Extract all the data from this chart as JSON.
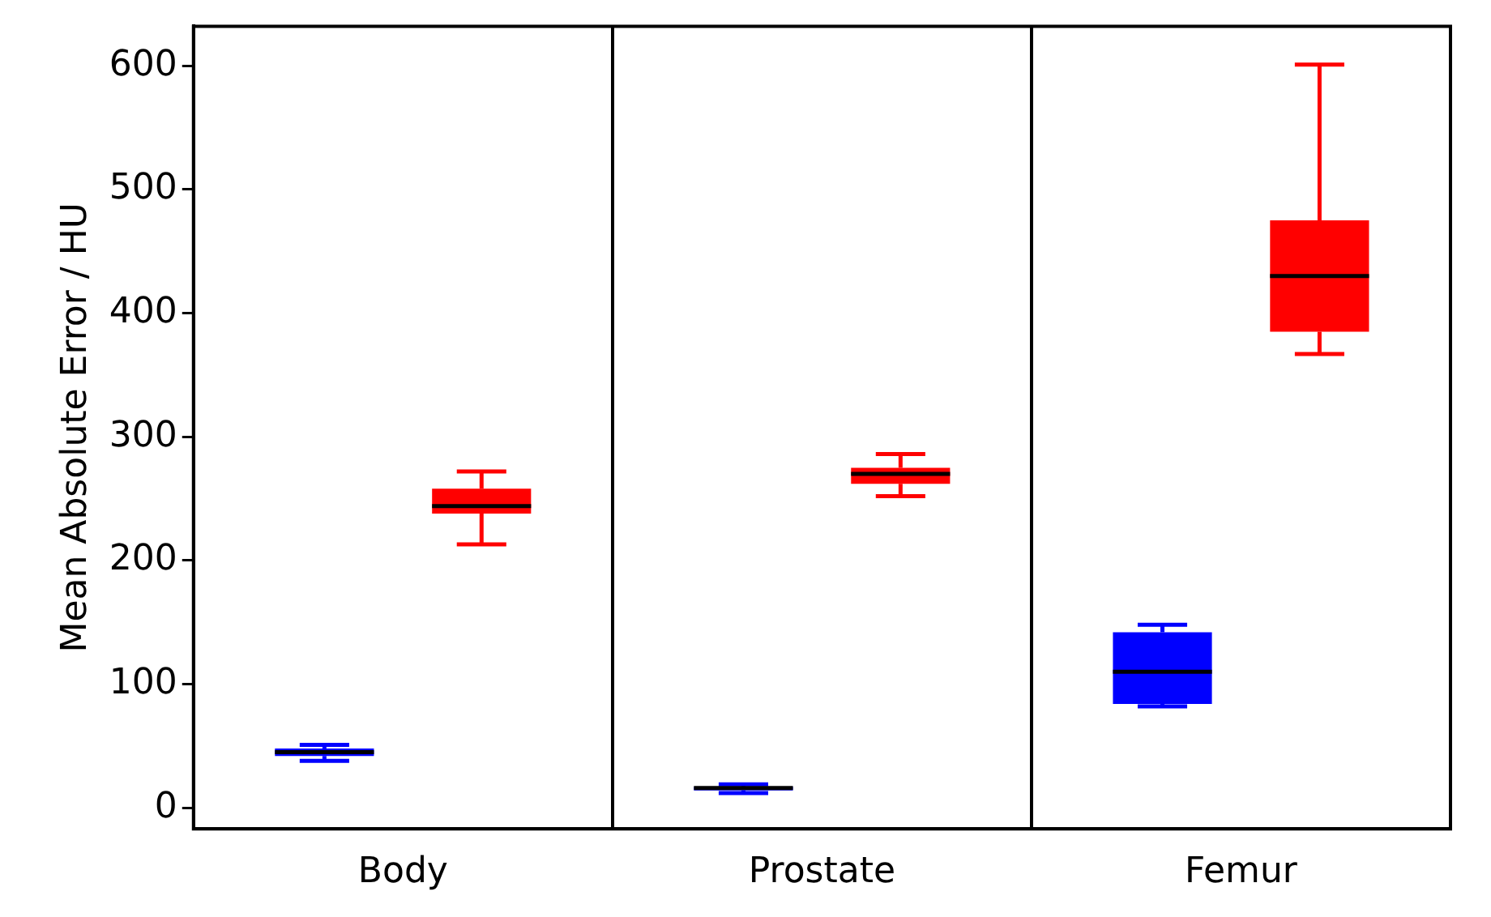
{
  "chart_data": {
    "type": "box",
    "ylabel": "Mean Absolute Error / HU",
    "categories": [
      "Body",
      "Prostate",
      "Femur"
    ],
    "series": [
      {
        "color": "#0000ff",
        "boxes": [
          {
            "low": 38,
            "q1": 42,
            "median": 45,
            "q3": 48,
            "high": 51
          },
          {
            "low": 12,
            "q1": 14,
            "median": 16,
            "q3": 17,
            "high": 19
          },
          {
            "low": 82,
            "q1": 84,
            "median": 110,
            "q3": 142,
            "high": 148
          }
        ]
      },
      {
        "color": "#ff0000",
        "boxes": [
          {
            "low": 213,
            "q1": 238,
            "median": 244,
            "q3": 258,
            "high": 272
          },
          {
            "low": 252,
            "q1": 262,
            "median": 270,
            "q3": 275,
            "high": 286
          },
          {
            "low": 367,
            "q1": 385,
            "median": 430,
            "q3": 475,
            "high": 601
          }
        ]
      }
    ],
    "ylim": [
      -17,
      632
    ],
    "yticks": [
      0,
      100,
      200,
      300,
      400,
      500,
      600
    ],
    "grid": "x",
    "legend": false
  }
}
